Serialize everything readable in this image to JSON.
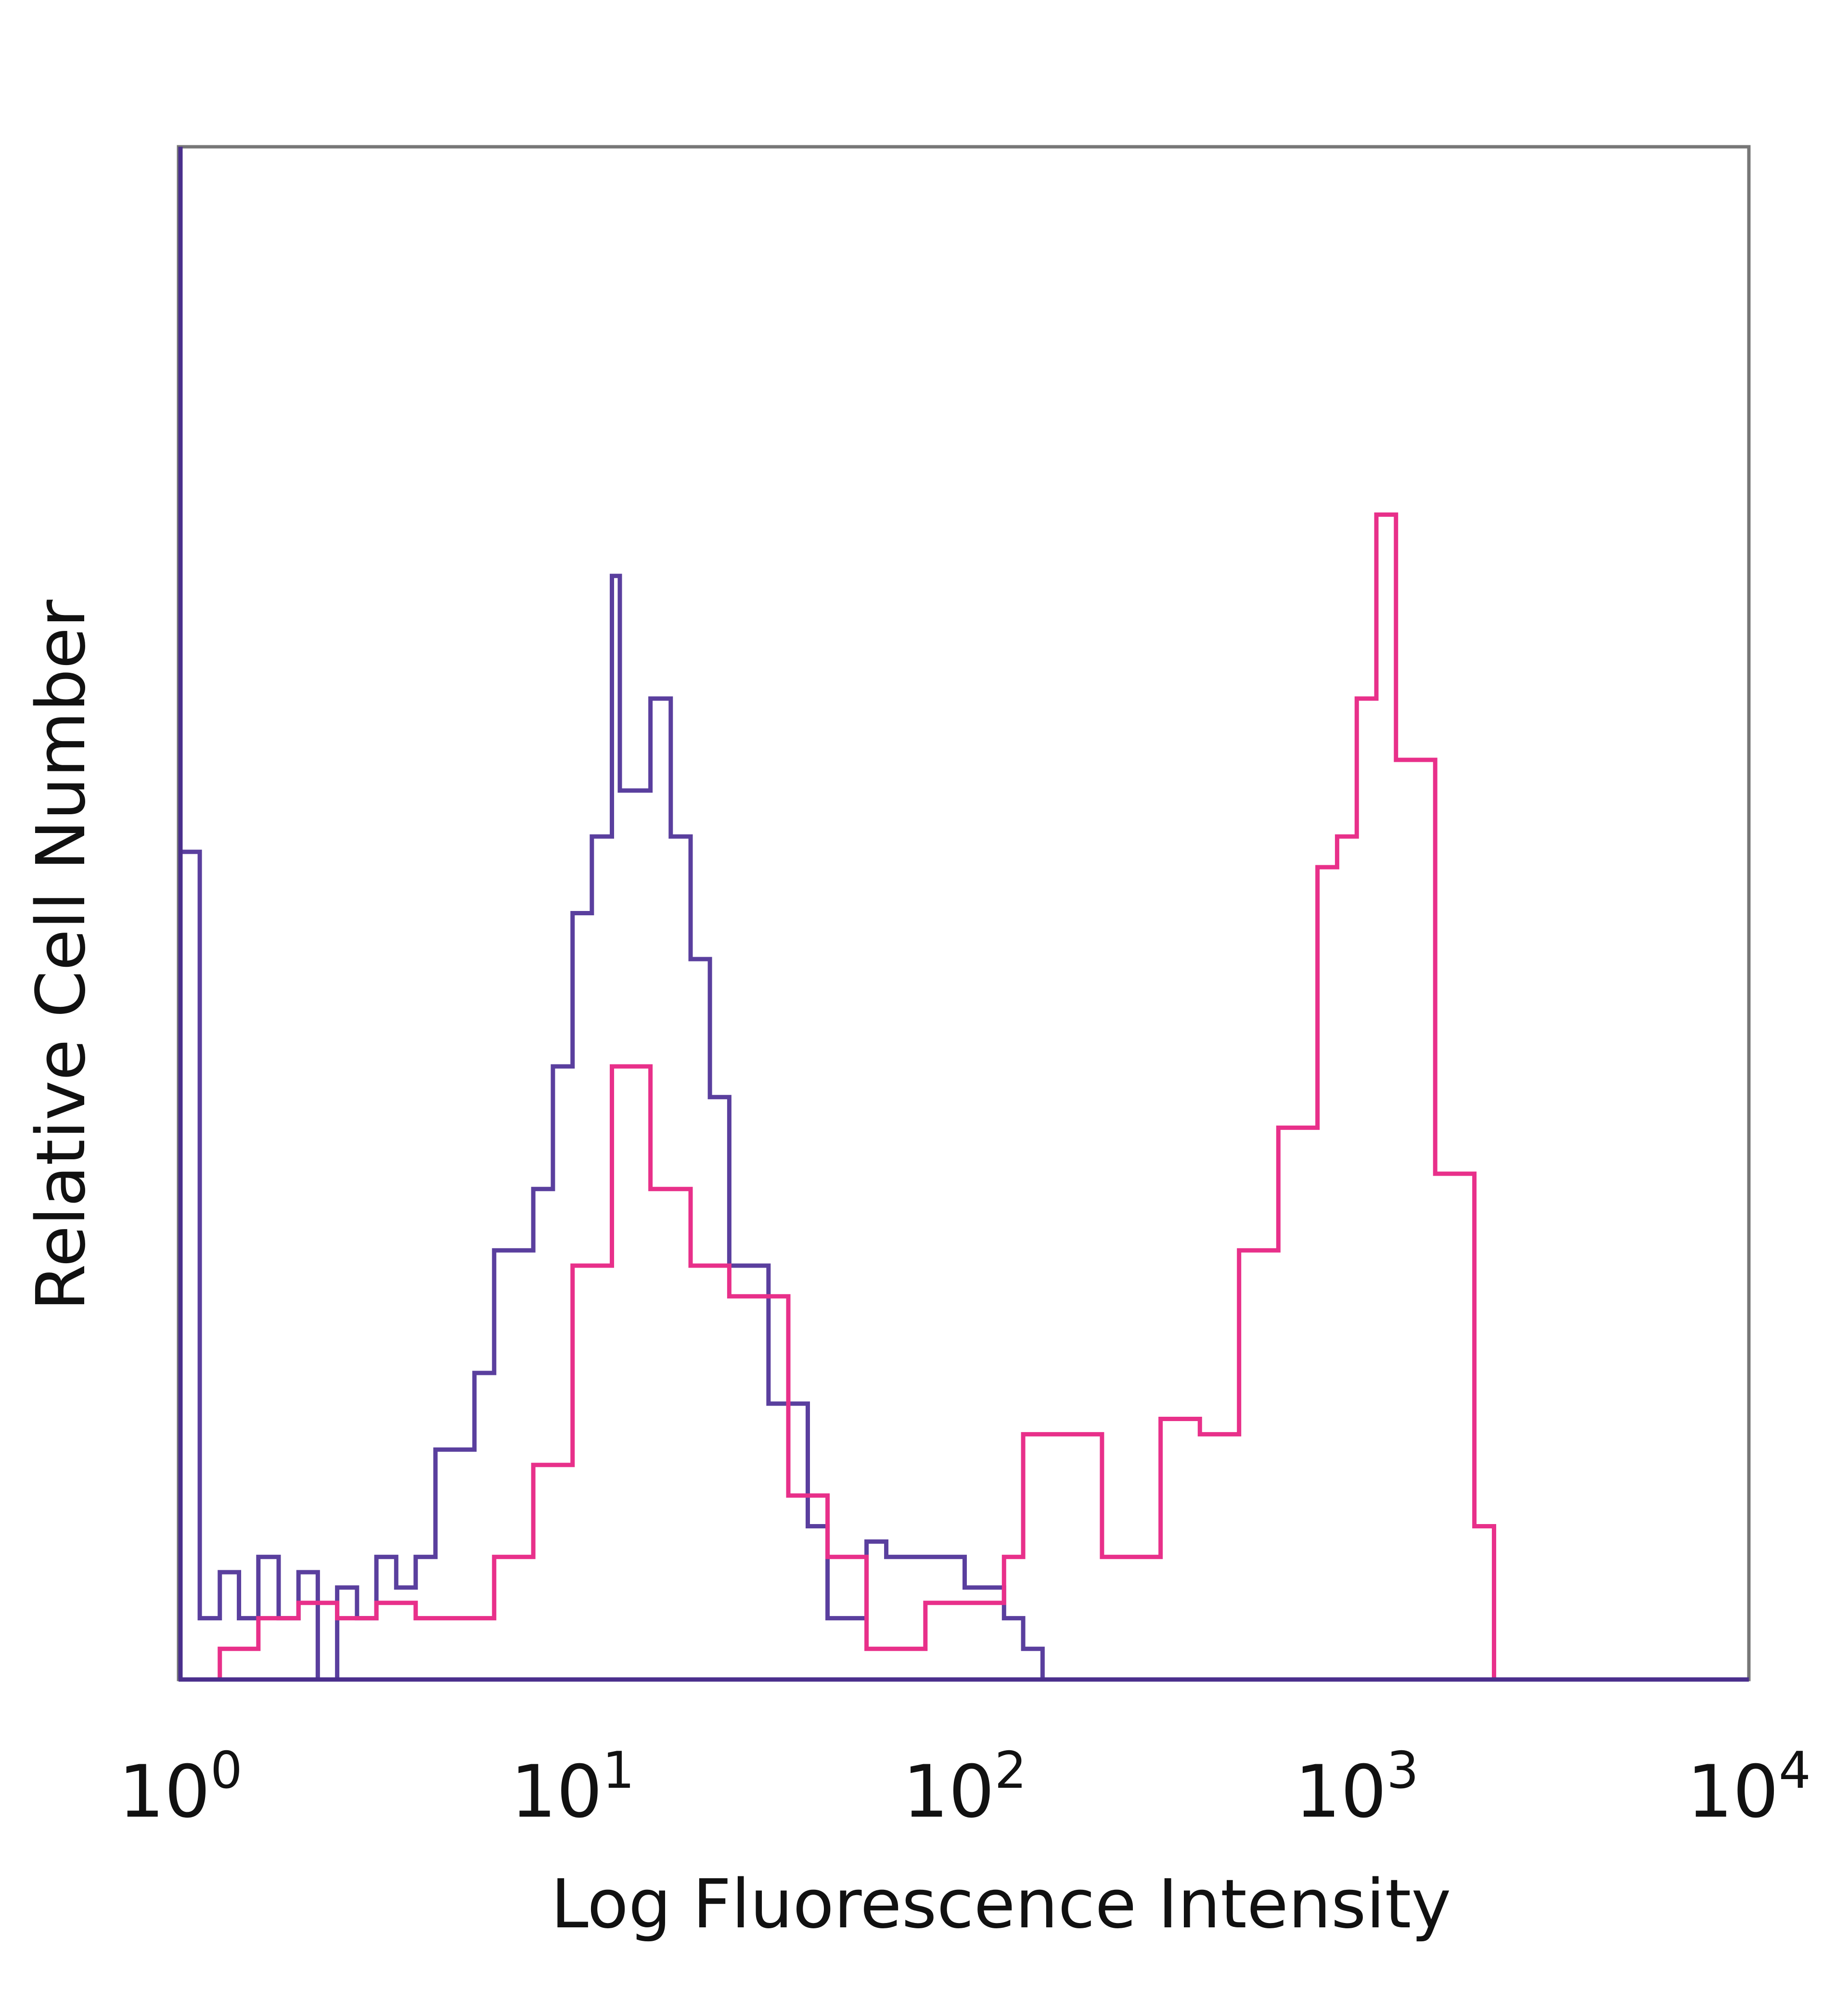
{
  "chart_data": {
    "type": "line",
    "title": "",
    "xlabel": "Log Fluorescence Intensity",
    "ylabel": "Relative Cell Number",
    "xscale": "log",
    "xlim": [
      1,
      10000
    ],
    "ylim": [
      0,
      100
    ],
    "grid": false,
    "x_ticks": [
      {
        "base": "10",
        "exp": "0",
        "value": 1
      },
      {
        "base": "10",
        "exp": "1",
        "value": 10
      },
      {
        "base": "10",
        "exp": "2",
        "value": 100
      },
      {
        "base": "10",
        "exp": "3",
        "value": 1000
      },
      {
        "base": "10",
        "exp": "4",
        "value": 10000
      }
    ],
    "series": [
      {
        "color": "#5a3f9e",
        "x": [
          1.0,
          1.12,
          1.26,
          1.41,
          1.58,
          1.78,
          2.0,
          2.24,
          2.51,
          2.82,
          3.16,
          3.55,
          3.98,
          4.47,
          5.62,
          6.31,
          7.94,
          8.91,
          10.0,
          11.2,
          12.6,
          13.2,
          15.8,
          17.8,
          20.0,
          22.4,
          25.1,
          31.6,
          39.8,
          44.7,
          56.2,
          63.1,
          100,
          126,
          141,
          158
        ],
        "y": [
          54,
          4,
          7,
          4,
          8,
          4,
          7,
          0,
          6,
          4,
          8,
          6,
          8,
          15,
          20,
          28,
          32,
          40,
          50,
          55,
          72,
          58,
          64,
          55,
          47,
          38,
          27,
          18,
          10,
          4,
          9,
          8,
          6,
          4,
          2,
          0
        ]
      },
      {
        "color": "#e8308a",
        "x": [
          1.26,
          1.58,
          2.0,
          2.51,
          3.16,
          3.98,
          6.31,
          7.94,
          10.0,
          11.2,
          12.6,
          15.8,
          20.0,
          25.1,
          35.5,
          44.7,
          56.2,
          79.4,
          100,
          126,
          141,
          224,
          251,
          316,
          398,
          501,
          631,
          794,
          891,
          1000,
          1122,
          1259,
          1585,
          1995,
          2239
        ],
        "y": [
          2,
          4,
          5,
          4,
          5,
          4,
          8,
          14,
          27,
          27,
          40,
          32,
          27,
          25,
          12,
          8,
          2,
          5,
          5,
          8,
          16,
          8,
          8,
          17,
          16,
          28,
          36,
          53,
          55,
          64,
          76,
          60,
          33,
          10,
          0
        ]
      }
    ]
  }
}
